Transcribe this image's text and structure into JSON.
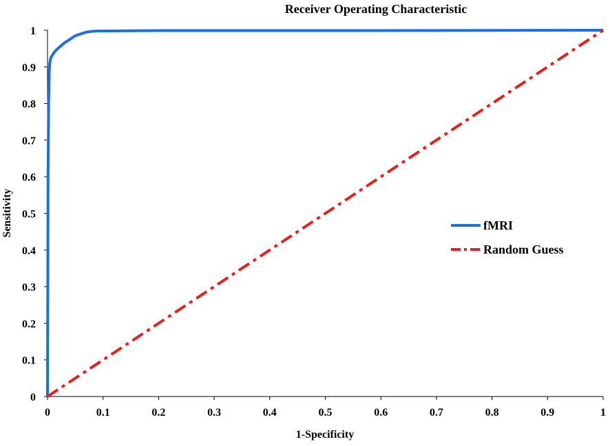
{
  "chart_data": {
    "type": "line",
    "title": "Receiver Operating Characteristic",
    "xlabel": "1-Specificity",
    "ylabel": "Sensitivity",
    "xlim": [
      0,
      1
    ],
    "ylim": [
      0,
      1
    ],
    "grid": false,
    "legend_position": "right",
    "x_ticks": [
      "0",
      "0.1",
      "0.2",
      "0.3",
      "0.4",
      "0.5",
      "0.6",
      "0.7",
      "0.8",
      "0.9",
      "1"
    ],
    "y_ticks": [
      "0",
      "0.1",
      "0.2",
      "0.3",
      "0.4",
      "0.5",
      "0.6",
      "0.7",
      "0.8",
      "0.9",
      "1"
    ],
    "series": [
      {
        "name": "fMRI",
        "color": "#1a6fe8",
        "style": "solid",
        "x": [
          0,
          0.001,
          0.002,
          0.003,
          0.004,
          0.006,
          0.01,
          0.015,
          0.02,
          0.03,
          0.04,
          0.05,
          0.06,
          0.07,
          0.08,
          0.09,
          0.1,
          0.2,
          0.5,
          1.0
        ],
        "y": [
          0,
          0.6,
          0.8,
          0.88,
          0.91,
          0.925,
          0.935,
          0.945,
          0.952,
          0.965,
          0.975,
          0.985,
          0.99,
          0.995,
          0.997,
          0.998,
          0.998,
          0.999,
          0.999,
          1.0
        ]
      },
      {
        "name": "Random Guess",
        "color": "#e8201c",
        "style": "dashdot",
        "x": [
          0,
          1
        ],
        "y": [
          0,
          1
        ]
      }
    ]
  }
}
